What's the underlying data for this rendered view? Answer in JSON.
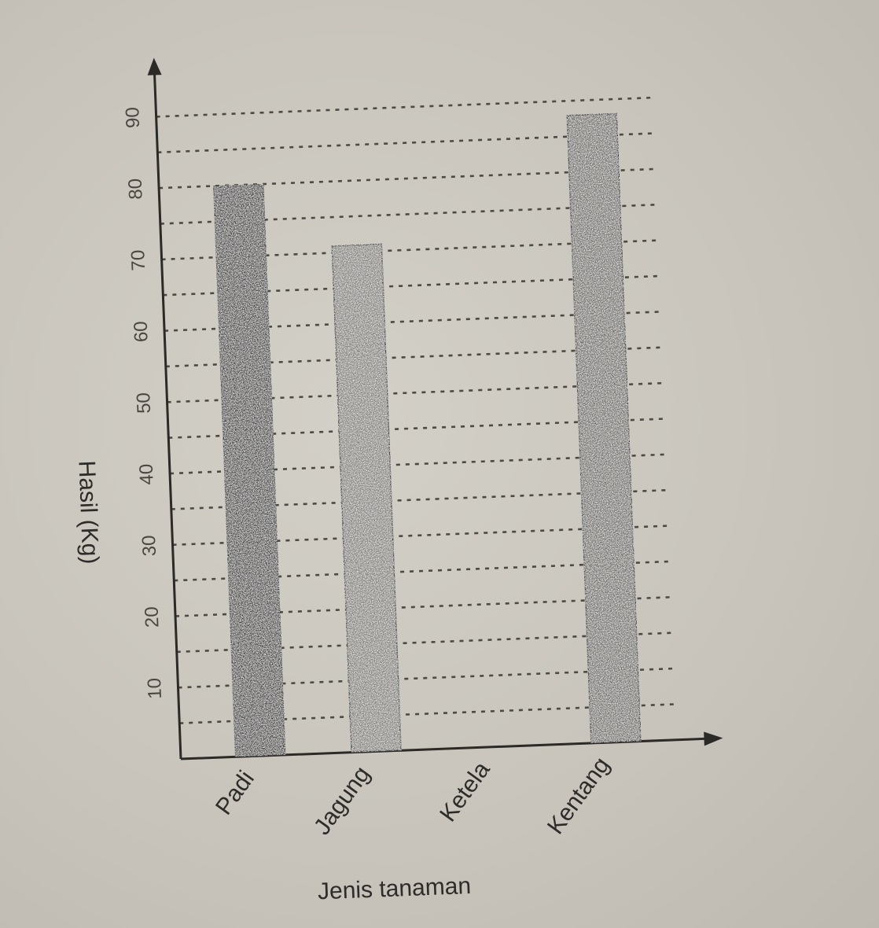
{
  "chart_data": {
    "type": "bar",
    "title": "",
    "xlabel": "Jenis tanaman",
    "ylabel": "Hasil (Kg)",
    "categories": [
      "Padi",
      "Jagung",
      "Ketela",
      "Kentang"
    ],
    "values": [
      80,
      71,
      0,
      88
    ],
    "ylim": [
      0,
      90
    ],
    "yticks": [
      10,
      20,
      30,
      40,
      50,
      60,
      70,
      80,
      90
    ],
    "grid": "dotted horizontal lines every 5",
    "colors": {
      "Padi": "#3a3835",
      "Jagung": "#7e7b76",
      "Kentang": "#6a6762"
    }
  }
}
